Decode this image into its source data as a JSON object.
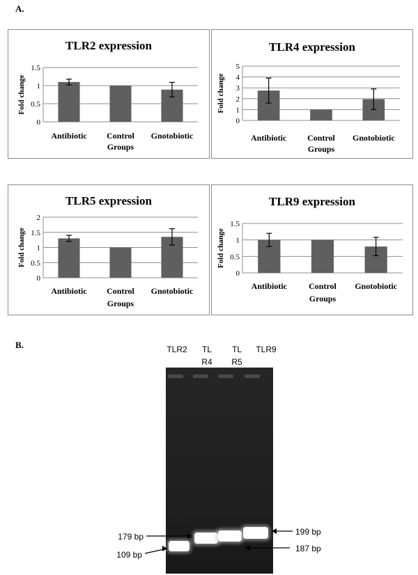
{
  "panel_a_label": "A.",
  "panel_b_label": "B.",
  "colors": {
    "bar": "#5f5f5f",
    "grid": "#8c8c8c",
    "error": "#000000",
    "gel_bg": "#1f1f1f",
    "band": "#ffffff"
  },
  "chart_data": [
    {
      "type": "bar",
      "title": "TLR2 expression",
      "xlabel": "Groups",
      "ylabel": "Fold change",
      "categories": [
        "Antibiotic",
        "Control",
        "Gnotobiotic"
      ],
      "ylim": [
        0,
        1.5
      ],
      "yticks": [
        0,
        0.5,
        1,
        1.5
      ],
      "ytick_labels": [
        "0",
        "0.5",
        "1",
        "1.5"
      ],
      "values": [
        1.1,
        1.0,
        0.89
      ],
      "errors": [
        0.08,
        0.0,
        0.2
      ],
      "grid": true
    },
    {
      "type": "bar",
      "title": "TLR4 expression",
      "xlabel": "Groups",
      "ylabel": "Fold change",
      "categories": [
        "Antibiotic",
        "Control",
        "Gnotobiotic"
      ],
      "ylim": [
        0,
        5
      ],
      "yticks": [
        0,
        1,
        2,
        3,
        4,
        5
      ],
      "ytick_labels": [
        "0",
        "1",
        "2",
        "3",
        "4",
        "5"
      ],
      "values": [
        2.75,
        1.0,
        1.95
      ],
      "errors": [
        1.15,
        0.0,
        0.95
      ],
      "grid": true
    },
    {
      "type": "bar",
      "title": "TLR5 expression",
      "xlabel": "Groups",
      "ylabel": "Fold change",
      "categories": [
        "Antibiotic",
        "Control",
        "Gnotobiotic"
      ],
      "ylim": [
        0,
        2
      ],
      "yticks": [
        0,
        0.5,
        1,
        1.5,
        2
      ],
      "ytick_labels": [
        "0",
        "0.5",
        "1",
        "1.5",
        "2"
      ],
      "values": [
        1.3,
        1.0,
        1.35
      ],
      "errors": [
        0.1,
        0.0,
        0.27
      ],
      "grid": true
    },
    {
      "type": "bar",
      "title": "TLR9 expression",
      "xlabel": "Groups",
      "ylabel": "Fold change",
      "categories": [
        "Antibiotic",
        "Control",
        "Gnotobiotic"
      ],
      "ylim": [
        0,
        1.5
      ],
      "yticks": [
        0,
        0.5,
        1,
        1.5
      ],
      "ytick_labels": [
        "0",
        "0.5",
        "1",
        "1.5"
      ],
      "values": [
        1.0,
        1.0,
        0.8
      ],
      "errors": [
        0.2,
        0.0,
        0.28
      ],
      "grid": true
    }
  ],
  "gel": {
    "lane_labels": [
      {
        "lines": [
          "TLR2"
        ]
      },
      {
        "lines": [
          "TL",
          "R4"
        ]
      },
      {
        "lines": [
          "TL",
          "R5"
        ]
      },
      {
        "lines": [
          "TLR9"
        ]
      }
    ],
    "band_labels": {
      "b179": "179 bp",
      "b109": "109 bp",
      "b199": "199 bp",
      "b187": "187 bp"
    }
  }
}
